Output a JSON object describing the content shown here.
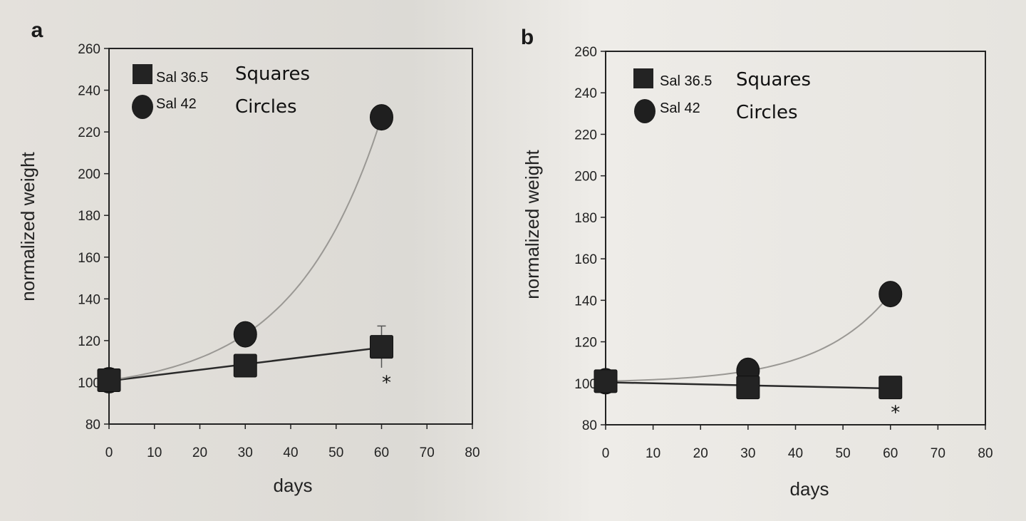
{
  "chart_data": [
    {
      "panel_label": "a",
      "type": "scatter",
      "xlabel": "days",
      "ylabel": "normalized weight",
      "xlim": [
        0,
        80
      ],
      "ylim": [
        80,
        260
      ],
      "xticks": [
        "0",
        "10",
        "20",
        "30",
        "40",
        "50",
        "60",
        "70",
        "80"
      ],
      "yticks": [
        "80",
        "100",
        "120",
        "140",
        "160",
        "180",
        "200",
        "220",
        "240",
        "260"
      ],
      "legend": [
        {
          "marker": "square",
          "label": "Sal 36.5",
          "note": "Squares"
        },
        {
          "marker": "circle",
          "label": "Sal 42",
          "note": "Circles"
        }
      ],
      "series": [
        {
          "name": "Sal 36.5",
          "marker": "square",
          "fit": "linear",
          "x": [
            0,
            30,
            60
          ],
          "y": [
            101,
            108,
            117
          ],
          "err": [
            0,
            0,
            10
          ]
        },
        {
          "name": "Sal 42",
          "marker": "circle",
          "fit": "exponential",
          "x": [
            0,
            30,
            60
          ],
          "y": [
            101,
            123,
            227
          ],
          "err": [
            0,
            0,
            0
          ]
        }
      ],
      "annotations": [
        {
          "text": "*",
          "x": 60,
          "y": 101
        }
      ]
    },
    {
      "panel_label": "b",
      "type": "scatter",
      "xlabel": "days",
      "ylabel": "normalized weight",
      "xlim": [
        0,
        80
      ],
      "ylim": [
        80,
        260
      ],
      "xticks": [
        "0",
        "10",
        "20",
        "30",
        "40",
        "50",
        "60",
        "70",
        "80"
      ],
      "yticks": [
        "80",
        "100",
        "120",
        "140",
        "160",
        "180",
        "200",
        "220",
        "240",
        "260"
      ],
      "legend": [
        {
          "marker": "square",
          "label": "Sal 36.5",
          "note": "Squares"
        },
        {
          "marker": "circle",
          "label": "Sal 42",
          "note": "Circles"
        }
      ],
      "series": [
        {
          "name": "Sal 36.5",
          "marker": "square",
          "fit": "linear",
          "x": [
            0,
            30,
            60
          ],
          "y": [
            101,
            98,
            98
          ],
          "err": [
            0,
            0,
            0
          ]
        },
        {
          "name": "Sal 42",
          "marker": "circle",
          "fit": "exponential",
          "x": [
            0,
            30,
            60
          ],
          "y": [
            101,
            106,
            143
          ],
          "err": [
            0,
            0,
            0
          ]
        }
      ],
      "annotations": [
        {
          "text": "*",
          "x": 60,
          "y": 87
        }
      ]
    }
  ]
}
